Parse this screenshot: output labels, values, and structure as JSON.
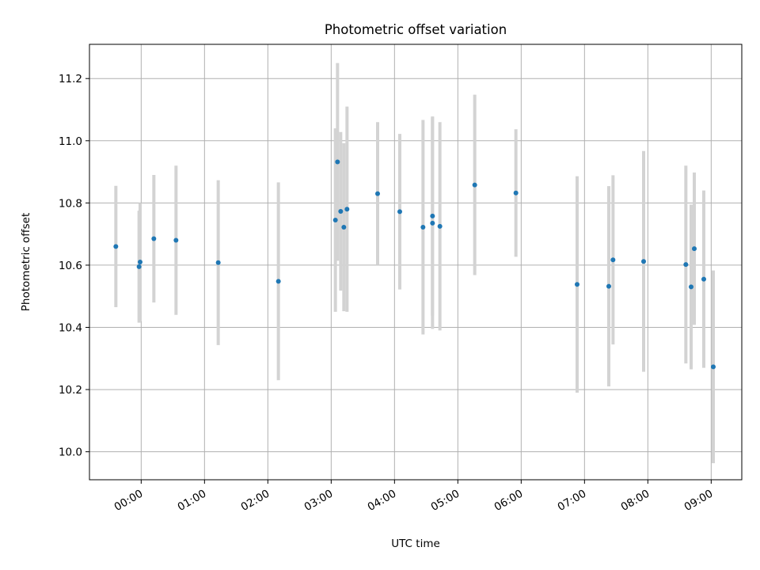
{
  "chart_data": {
    "type": "scatter",
    "title": "Photometric offset variation",
    "xlabel": "UTC time",
    "ylabel": "Photometric offset",
    "x_unit": "hours (UTC)",
    "xlim": [
      "-00:49",
      "09:29"
    ],
    "ylim": [
      9.91,
      11.31
    ],
    "grid": true,
    "x_ticks": [
      {
        "time": "00:00",
        "label": "00:00"
      },
      {
        "time": "01:00",
        "label": "01:00"
      },
      {
        "time": "02:00",
        "label": "02:00"
      },
      {
        "time": "03:00",
        "label": "03:00"
      },
      {
        "time": "04:00",
        "label": "04:00"
      },
      {
        "time": "05:00",
        "label": "05:00"
      },
      {
        "time": "06:00",
        "label": "06:00"
      },
      {
        "time": "07:00",
        "label": "07:00"
      },
      {
        "time": "08:00",
        "label": "08:00"
      },
      {
        "time": "09:00",
        "label": "09:00"
      }
    ],
    "y_ticks": [
      {
        "value": 10.0,
        "label": "10.0"
      },
      {
        "value": 10.2,
        "label": "10.2"
      },
      {
        "value": 10.4,
        "label": "10.4"
      },
      {
        "value": 10.6,
        "label": "10.6"
      },
      {
        "value": 10.8,
        "label": "10.8"
      },
      {
        "value": 11.0,
        "label": "11.0"
      },
      {
        "value": 11.2,
        "label": "11.2"
      }
    ],
    "series": [
      {
        "marker_color": "#1f77b4",
        "errorbar_color": "#d3d3d3",
        "points": [
          {
            "x": "23:36",
            "y": 10.66,
            "yerr": 0.195
          },
          {
            "x": "23:58",
            "y": 10.595,
            "yerr": 0.18
          },
          {
            "x": "23:59",
            "y": 10.61,
            "yerr": 0.19
          },
          {
            "x": "00:12",
            "y": 10.685,
            "yerr": 0.205
          },
          {
            "x": "00:33",
            "y": 10.68,
            "yerr": 0.24
          },
          {
            "x": "01:13",
            "y": 10.608,
            "yerr": 0.265
          },
          {
            "x": "02:10",
            "y": 10.548,
            "yerr": 0.318
          },
          {
            "x": "03:04",
            "y": 10.745,
            "yerr": 0.295
          },
          {
            "x": "03:06",
            "y": 10.932,
            "yerr": 0.318
          },
          {
            "x": "03:09",
            "y": 10.773,
            "yerr": 0.255
          },
          {
            "x": "03:12",
            "y": 10.722,
            "yerr": 0.27
          },
          {
            "x": "03:15",
            "y": 10.78,
            "yerr": 0.33
          },
          {
            "x": "03:44",
            "y": 10.83,
            "yerr": 0.23
          },
          {
            "x": "04:05",
            "y": 10.772,
            "yerr": 0.25
          },
          {
            "x": "04:27",
            "y": 10.722,
            "yerr": 0.345
          },
          {
            "x": "04:36",
            "y": 10.758,
            "yerr": 0.32
          },
          {
            "x": "04:36",
            "y": 10.735,
            "yerr": 0.34
          },
          {
            "x": "04:43",
            "y": 10.725,
            "yerr": 0.335
          },
          {
            "x": "05:16",
            "y": 10.858,
            "yerr": 0.29
          },
          {
            "x": "05:55",
            "y": 10.832,
            "yerr": 0.205
          },
          {
            "x": "06:53",
            "y": 10.538,
            "yerr": 0.348
          },
          {
            "x": "07:23",
            "y": 10.532,
            "yerr": 0.322
          },
          {
            "x": "07:27",
            "y": 10.617,
            "yerr": 0.272
          },
          {
            "x": "07:56",
            "y": 10.612,
            "yerr": 0.355
          },
          {
            "x": "08:36",
            "y": 10.602,
            "yerr": 0.318
          },
          {
            "x": "08:41",
            "y": 10.53,
            "yerr": 0.265
          },
          {
            "x": "08:44",
            "y": 10.653,
            "yerr": 0.245
          },
          {
            "x": "08:53",
            "y": 10.555,
            "yerr": 0.285
          },
          {
            "x": "09:02",
            "y": 10.273,
            "yerr": 0.31
          }
        ]
      }
    ]
  }
}
